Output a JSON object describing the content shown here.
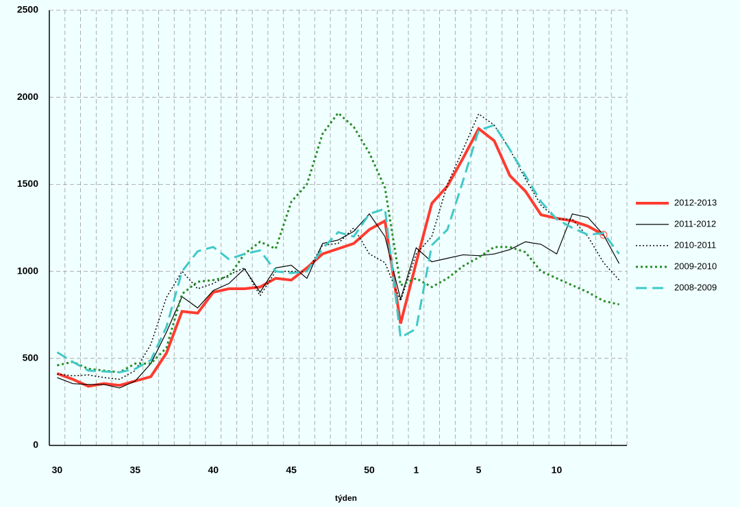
{
  "chart_data": {
    "type": "line",
    "x_label": "týden",
    "categories": [
      30,
      null,
      null,
      null,
      null,
      35,
      null,
      null,
      null,
      null,
      40,
      null,
      null,
      null,
      null,
      45,
      null,
      null,
      null,
      null,
      50,
      null,
      null,
      1,
      null,
      null,
      null,
      5,
      null,
      null,
      null,
      null,
      10,
      null,
      null,
      null,
      null
    ],
    "ylim": [
      0,
      2500
    ],
    "yticks": [
      0,
      500,
      1000,
      1500,
      2000,
      2500
    ],
    "grid": true,
    "legend": "right",
    "series": [
      {
        "name": "2012-2013",
        "color": "#ff3b2f",
        "width": 4,
        "dash": "none",
        "marker_last": true,
        "values": [
          413,
          380,
          340,
          355,
          345,
          370,
          395,
          530,
          770,
          760,
          880,
          900,
          900,
          910,
          960,
          950,
          1020,
          1100,
          1130,
          1160,
          1240,
          1290,
          700,
          1050,
          1390,
          1490,
          1650,
          1820,
          1750,
          1550,
          1460,
          1325,
          1305,
          1290,
          1260,
          1210,
          null
        ]
      },
      {
        "name": "2011-2012",
        "color": "#000000",
        "width": 1.2,
        "dash": "none",
        "values": [
          390,
          355,
          350,
          350,
          330,
          370,
          470,
          650,
          855,
          790,
          890,
          930,
          1015,
          880,
          1020,
          1035,
          960,
          1160,
          1180,
          1230,
          1330,
          1200,
          840,
          1135,
          1055,
          1075,
          1095,
          1090,
          1100,
          1125,
          1170,
          1155,
          1100,
          1330,
          1310,
          1210,
          1045
        ]
      },
      {
        "name": "2010-2011",
        "color": "#000000",
        "width": 1.5,
        "dash": "2 3",
        "values": [
          410,
          400,
          405,
          390,
          380,
          430,
          580,
          850,
          1000,
          900,
          930,
          980,
          1020,
          860,
          1000,
          1000,
          1000,
          1150,
          1160,
          1250,
          1100,
          1050,
          830,
          1100,
          1200,
          1500,
          1700,
          1905,
          1840,
          1700,
          1530,
          1380,
          1300,
          1300,
          1200,
          1050,
          950
        ]
      },
      {
        "name": "2009-2010",
        "color": "#228b22",
        "width": 3,
        "dash": "3 4",
        "values": [
          460,
          480,
          440,
          430,
          420,
          470,
          470,
          560,
          870,
          940,
          950,
          970,
          1100,
          1170,
          1130,
          1400,
          1500,
          1790,
          1910,
          1830,
          1680,
          1480,
          920,
          960,
          910,
          960,
          1030,
          1080,
          1140,
          1140,
          1110,
          1000,
          960,
          920,
          880,
          830,
          810
        ]
      },
      {
        "name": "2008-2009",
        "color": "#40c8c8",
        "width": 3,
        "dash": "16 8",
        "values": [
          535,
          480,
          430,
          425,
          420,
          440,
          490,
          680,
          1000,
          1115,
          1140,
          1070,
          1100,
          1120,
          1000,
          990,
          1000,
          1130,
          1225,
          1200,
          1330,
          1360,
          620,
          670,
          1150,
          1240,
          1520,
          1810,
          1840,
          1700,
          1550,
          1400,
          1300,
          1250,
          1210,
          1220,
          1100
        ]
      }
    ]
  }
}
